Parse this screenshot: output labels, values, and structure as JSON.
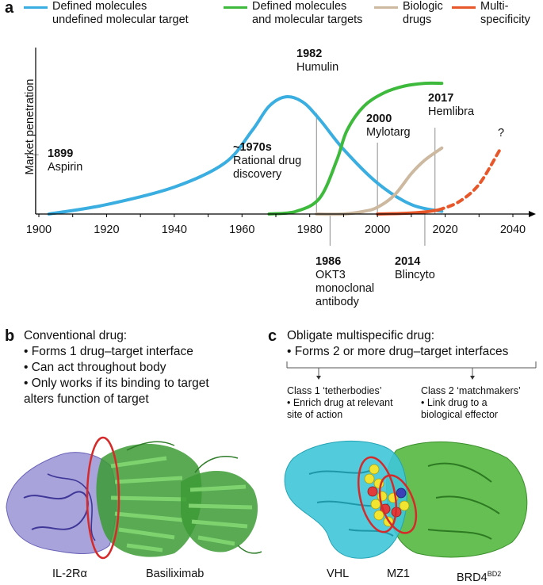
{
  "panel_a": {
    "letter": "a",
    "legend": [
      {
        "line1": "Defined molecules",
        "line2": "undefined molecular target",
        "color": "#3aaee0"
      },
      {
        "line1": "Defined molecules",
        "line2": "and molecular targets",
        "color": "#3dba3c"
      },
      {
        "line1": "Biologic",
        "line2": "drugs",
        "color": "#cdb8a0"
      },
      {
        "line1": "Multi-",
        "line2": "specificity",
        "color": "#e8572a"
      }
    ],
    "annotations": {
      "aspirin_year": "1899",
      "aspirin_name": "Aspirin",
      "rational_year": "~1970s",
      "rational_l1": "Rational drug",
      "rational_l2": "discovery",
      "humulin_year": "1982",
      "humulin_name": "Humulin",
      "mylotarg_year": "2000",
      "mylotarg_name": "Mylotarg",
      "hemlibra_year": "2017",
      "hemlibra_name": "Hemlibra",
      "okt3_year": "1986",
      "okt3_l1": "OKT3",
      "okt3_l2": "monoclonal",
      "okt3_l3": "antibody",
      "blincyto_year": "2014",
      "blincyto_name": "Blincyto",
      "question": "?"
    }
  },
  "chart_data": {
    "type": "line",
    "xlabel": "",
    "ylabel": "Market penetration",
    "xlim": [
      1898,
      2050
    ],
    "xticks": [
      1900,
      1920,
      1940,
      1960,
      1980,
      2000,
      2020,
      2040
    ],
    "ylim": [
      0,
      1
    ],
    "series": [
      {
        "name": "Defined molecules undefined molecular target",
        "color": "#3aaee0",
        "style": "solid",
        "x": [
          1903,
          1920,
          1940,
          1955,
          1963,
          1968,
          1973,
          1978,
          1983,
          1990,
          2000,
          2010,
          2019
        ],
        "y": [
          0.0,
          0.07,
          0.2,
          0.38,
          0.62,
          0.8,
          0.87,
          0.83,
          0.7,
          0.48,
          0.23,
          0.07,
          0.02
        ]
      },
      {
        "name": "Defined molecules and molecular targets",
        "color": "#3dba3c",
        "style": "solid",
        "x": [
          1968,
          1976,
          1983,
          1988,
          1991,
          1996,
          2002,
          2008,
          2014,
          2019
        ],
        "y": [
          0.0,
          0.02,
          0.12,
          0.4,
          0.62,
          0.8,
          0.9,
          0.95,
          0.97,
          0.97
        ]
      },
      {
        "name": "Biologic drugs",
        "color": "#cdb8a0",
        "style": "solid",
        "x": [
          1982,
          1990,
          1996,
          2000,
          2005,
          2010,
          2014,
          2019
        ],
        "y": [
          0.0,
          0.0,
          0.02,
          0.05,
          0.14,
          0.3,
          0.4,
          0.49
        ]
      },
      {
        "name": "Multi-specificity",
        "color": "#e8572a",
        "style": "solid",
        "x": [
          2000,
          2008,
          2014,
          2018
        ],
        "y": [
          0.0,
          0.005,
          0.015,
          0.03
        ]
      },
      {
        "name": "Multi-specificity (projected)",
        "color": "#e8572a",
        "style": "dashed",
        "x": [
          2018,
          2024,
          2030,
          2036
        ],
        "y": [
          0.03,
          0.09,
          0.22,
          0.47
        ]
      }
    ],
    "markers": [
      {
        "year": 1899,
        "label": "1899 Aspirin",
        "top": 0.44
      },
      {
        "year": 1968,
        "label": "~1970s Rational drug discovery",
        "top": 0.0
      },
      {
        "year": 1982,
        "label": "1982 Humulin",
        "top": 0.75
      },
      {
        "year": 2000,
        "label": "2000 Mylotarg",
        "top": 0.53
      },
      {
        "year": 2017,
        "label": "2017 Hemlibra",
        "top": 0.64
      },
      {
        "year": 1986,
        "label": "1986 OKT3 monoclonal antibody",
        "bottom": true
      },
      {
        "year": 2014,
        "label": "2014 Blincyto",
        "bottom": true
      }
    ]
  },
  "panel_b": {
    "letter": "b",
    "title": "Conventional drug:",
    "bullets": [
      "• Forms 1 drug–target interface",
      "• Can act throughout body",
      "• Only works if its binding to target",
      "alters function of target"
    ],
    "label_left": "IL-2Rα",
    "label_right": "Basiliximab"
  },
  "panel_c": {
    "letter": "c",
    "title": "Obligate multispecific drug:",
    "bullet": "• Forms 2 or more drug–target interfaces",
    "class1_title": "Class 1 ‘tetherbodies’",
    "class1_l1": "• Enrich drug at relevant",
    "class1_l2": "site of action",
    "class2_title": "Class 2 ‘matchmakers’",
    "class2_l1": "• Link drug to a",
    "class2_l2": "biological effector",
    "label_vhl": "VHL",
    "label_mz1": "MZ1",
    "label_brd4": "BRD4",
    "label_brd4_sup": "BD2"
  }
}
